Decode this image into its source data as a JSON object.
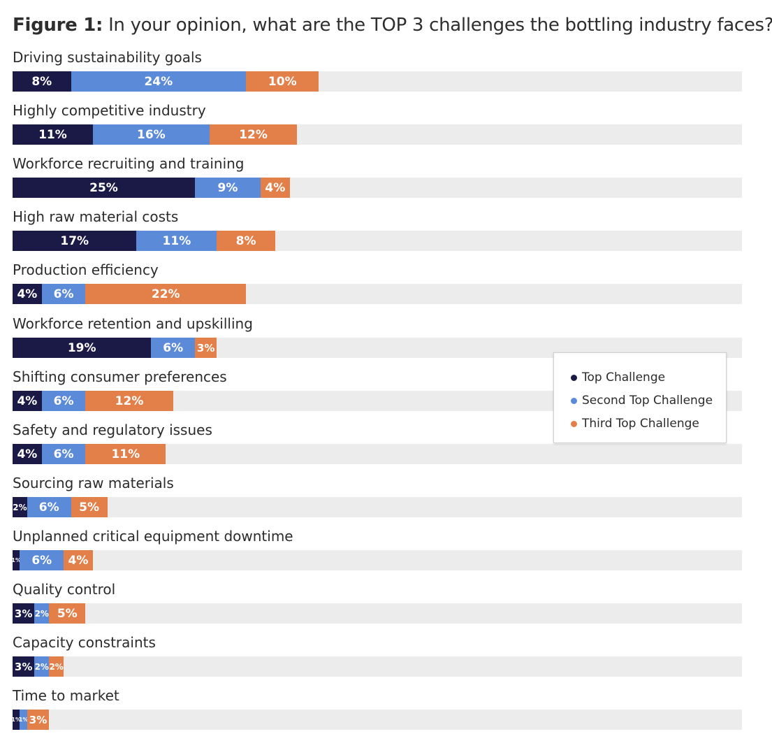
{
  "chart_data": {
    "type": "bar",
    "orientation": "horizontal",
    "stacked": true,
    "title_prefix": "Figure 1:",
    "title": "In your opinion, what are the TOP 3 challenges the bottling industry faces?",
    "categories": [
      "Driving sustainability goals",
      "Highly competitive industry",
      "Workforce recruiting and training",
      "High raw material costs",
      "Production efficiency",
      "Workforce retention and upskilling",
      "Shifting consumer preferences",
      "Safety and regulatory issues",
      "Sourcing raw materials",
      "Unplanned critical equipment downtime",
      "Quality control",
      "Capacity constraints",
      "Time to market"
    ],
    "series": [
      {
        "name": "Top Challenge",
        "color": "#1b1a47",
        "values": [
          8,
          11,
          25,
          17,
          4,
          19,
          4,
          4,
          2,
          1,
          3,
          3,
          1
        ]
      },
      {
        "name": "Second Top Challenge",
        "color": "#5b8ad8",
        "values": [
          24,
          16,
          9,
          11,
          6,
          6,
          6,
          6,
          6,
          6,
          2,
          2,
          1
        ]
      },
      {
        "name": "Third Top Challenge",
        "color": "#e3804a",
        "values": [
          10,
          12,
          4,
          8,
          22,
          3,
          12,
          11,
          5,
          4,
          5,
          2,
          3
        ]
      }
    ],
    "value_suffix": "%",
    "xlim": [
      0,
      100
    ],
    "grid": false,
    "legend_position": "right"
  }
}
